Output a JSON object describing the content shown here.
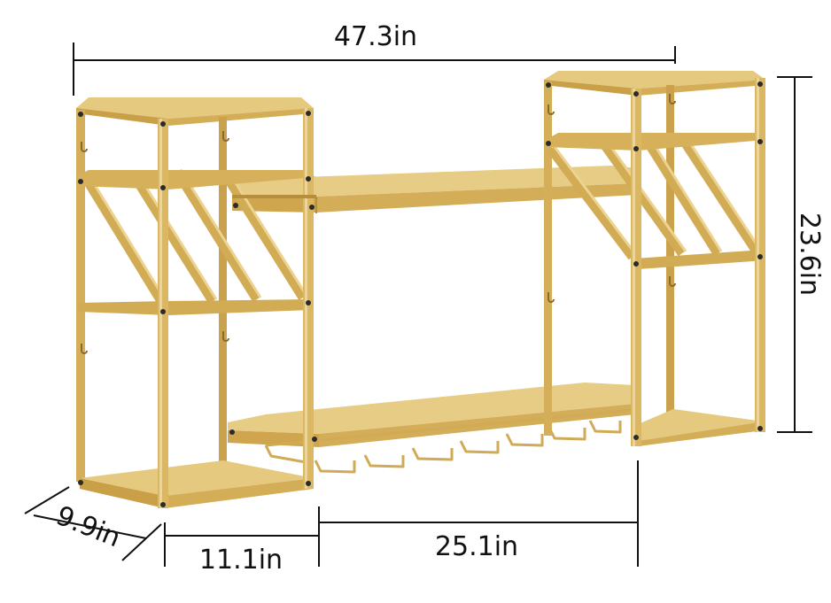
{
  "product": {
    "colors": {
      "frame": "#d7b256",
      "frame_dark": "#b58f3c",
      "frame_light": "#e9cf86",
      "shelf_top": "#e4c97e",
      "shelf_edge": "#c89f47",
      "dimension_line": "#111111",
      "background": "#ffffff"
    },
    "dimensions": {
      "total_width": "47.3in",
      "height": "23.6in",
      "depth": "9.9in",
      "side_width": "11.1in",
      "middle_width": "25.1in"
    }
  }
}
